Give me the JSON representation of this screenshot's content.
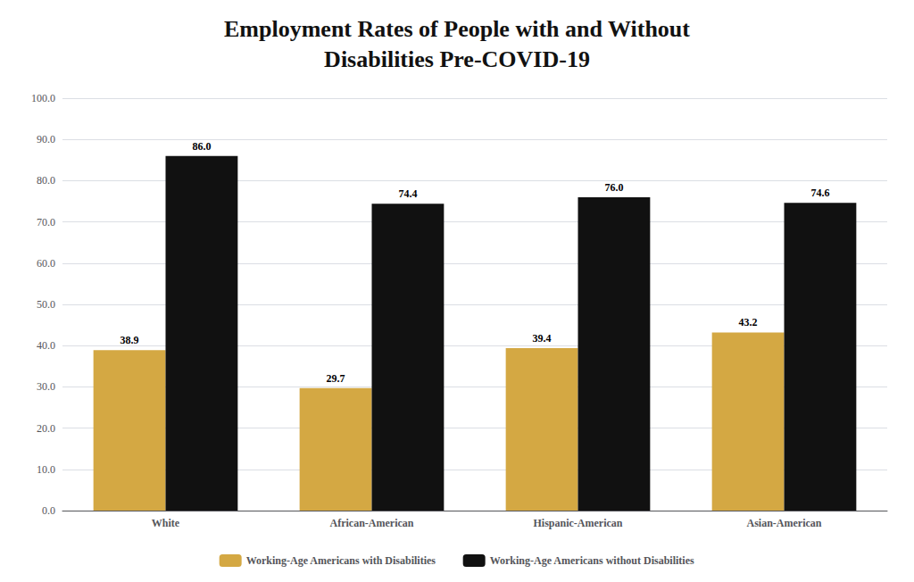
{
  "chart_data": {
    "type": "bar",
    "title": "Employment Rates of People with and Without\nDisabilities Pre-COVID-19",
    "categories": [
      "White",
      "African-American",
      "Hispanic-American",
      "Asian-American"
    ],
    "series": [
      {
        "name": "Working-Age Americans with Disabilities",
        "color": "#D4A843",
        "values": [
          38.9,
          29.7,
          39.4,
          43.2
        ],
        "value_labels": [
          "38.9",
          "29.7",
          "39.4",
          "43.2"
        ]
      },
      {
        "name": "Working-Age Americans without Disabilities",
        "color": "#111111",
        "values": [
          86.0,
          74.4,
          76.0,
          74.6
        ],
        "value_labels": [
          "86.0",
          "74.4",
          "76.0",
          "74.6"
        ]
      }
    ],
    "ylim": [
      0,
      100
    ],
    "yticks": [
      {
        "value": 0,
        "label": "0.0"
      },
      {
        "value": 10,
        "label": "10.0"
      },
      {
        "value": 20,
        "label": "20.0"
      },
      {
        "value": 30,
        "label": "30.0"
      },
      {
        "value": 40,
        "label": "40.0"
      },
      {
        "value": 50,
        "label": "50.0"
      },
      {
        "value": 60,
        "label": "60.0"
      },
      {
        "value": 70,
        "label": "70.0"
      },
      {
        "value": 80,
        "label": "80.0"
      },
      {
        "value": 90,
        "label": "90.0"
      },
      {
        "value": 100,
        "label": "100.0"
      }
    ],
    "grid": true,
    "legend": "bottom",
    "data_labels": true
  }
}
